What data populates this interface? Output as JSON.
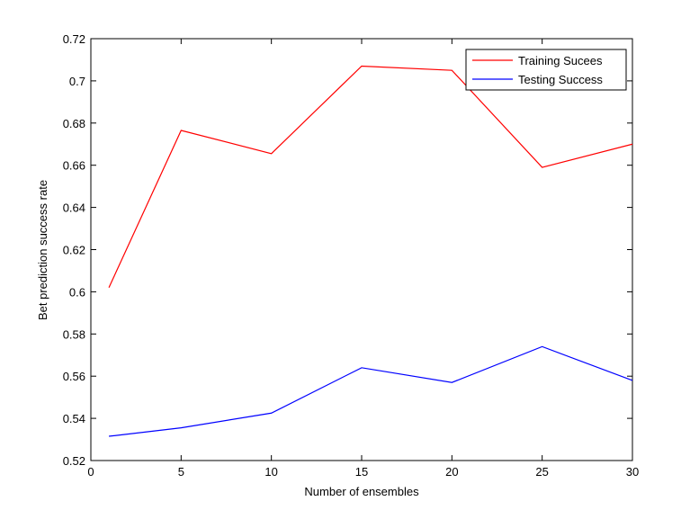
{
  "chart_data": {
    "type": "line",
    "title": "",
    "xlabel": "Number of ensembles",
    "ylabel": "Bet prediction success rate",
    "xlim": [
      0,
      30
    ],
    "ylim": [
      0.52,
      0.72
    ],
    "xticks": [
      0,
      5,
      10,
      15,
      20,
      25,
      30
    ],
    "xtick_labels": [
      "0",
      "5",
      "10",
      "15",
      "20",
      "25",
      "30"
    ],
    "yticks": [
      0.52,
      0.54,
      0.56,
      0.58,
      0.6,
      0.62,
      0.64,
      0.66,
      0.68,
      0.7,
      0.72
    ],
    "ytick_labels": [
      "0.52",
      "0.54",
      "0.56",
      "0.58",
      "0.6",
      "0.62",
      "0.64",
      "0.66",
      "0.68",
      "0.7",
      "0.72"
    ],
    "grid": false,
    "legend_position": "top-right",
    "x": [
      1,
      5,
      10,
      15,
      20,
      25,
      30
    ],
    "series": [
      {
        "name": "Training Sucees",
        "color": "#ff0000",
        "values": [
          0.602,
          0.6765,
          0.6655,
          0.707,
          0.705,
          0.659,
          0.67
        ]
      },
      {
        "name": "Testing Success",
        "color": "#0000ff",
        "values": [
          0.5315,
          0.5355,
          0.5425,
          0.564,
          0.557,
          0.574,
          0.558
        ]
      }
    ]
  }
}
